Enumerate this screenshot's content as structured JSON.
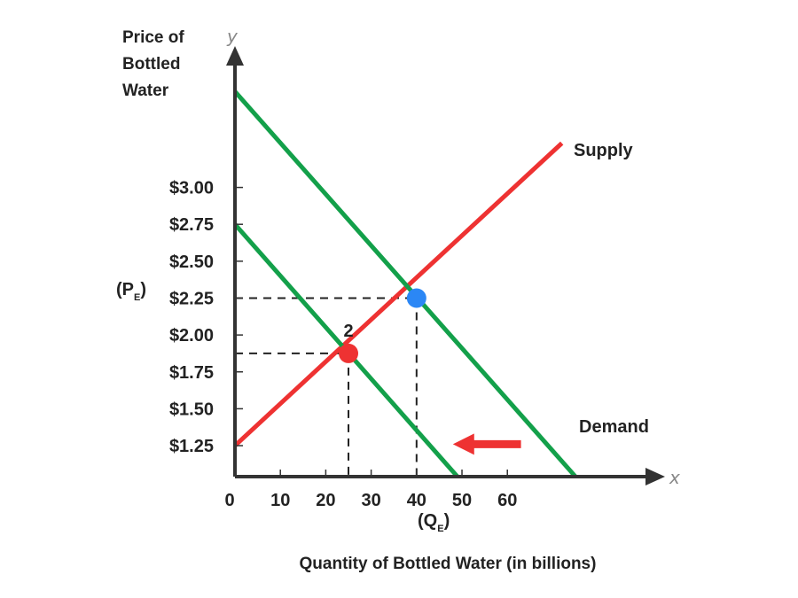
{
  "chart_data": {
    "type": "line",
    "xlabel": "Quantity of Bottled Water (in billions)",
    "ylabel": [
      "Price of",
      "Bottled",
      "Water"
    ],
    "x_axis_letter": "x",
    "y_axis_letter": "y",
    "xticks": [
      0,
      10,
      20,
      30,
      40,
      50,
      60
    ],
    "xtick_labels": [
      "0",
      "10",
      "20",
      "30",
      "40",
      "50",
      "60"
    ],
    "yticks": [
      1.25,
      1.5,
      1.75,
      2.0,
      2.25,
      2.5,
      2.75,
      3.0
    ],
    "ytick_labels": [
      "$1.25",
      "$1.50",
      "$1.75",
      "$2.00",
      "$2.25",
      "$2.50",
      "$2.75",
      "$3.00"
    ],
    "xlim": [
      0,
      83
    ],
    "ylim": [
      1.04,
      3.73
    ],
    "series": [
      {
        "name": "Supply",
        "color": "#ee3232",
        "points": [
          [
            0,
            1.25
          ],
          [
            72,
            3.3
          ]
        ]
      },
      {
        "name": "Demand",
        "color": "#13a04a",
        "points": [
          [
            0,
            3.65
          ],
          [
            75,
            1.04
          ]
        ]
      },
      {
        "name": "",
        "color": "#13a04a",
        "points": [
          [
            0,
            2.75
          ],
          [
            49,
            1.04
          ]
        ]
      }
    ],
    "equilibria": [
      {
        "x": 40,
        "y": 2.25,
        "color": "#2b87f5",
        "label": ""
      },
      {
        "x": 25,
        "y": 1.875,
        "color": "#ee3232",
        "label": "2"
      }
    ],
    "pe_label": {
      "main": "(P",
      "sub": "E",
      "close": ")"
    },
    "qe_label": {
      "main": "(Q",
      "sub": "E",
      "close": ")"
    },
    "shift_arrow": {
      "direction": "left",
      "color": "#ee3232",
      "from": [
        63,
        1.26
      ],
      "to": [
        48,
        1.26
      ]
    },
    "colors": {
      "axis": "#333333",
      "supply": "#ee3232",
      "demand": "#13a04a",
      "initial_eq": "#2b87f5",
      "new_eq": "#ee3232"
    }
  }
}
